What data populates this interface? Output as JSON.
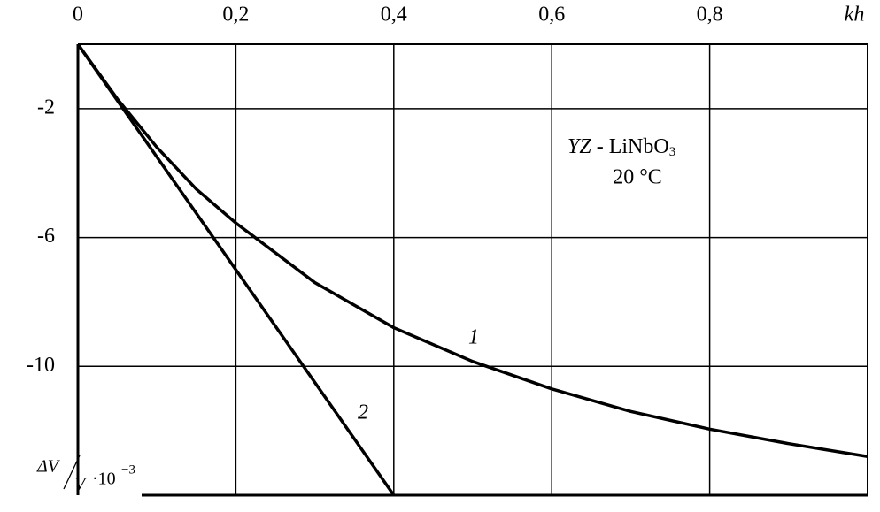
{
  "chart_data": {
    "type": "line",
    "x_label": "kh",
    "y_label": {
      "numerator": "ΔV",
      "denominator": "V",
      "scale": "·10",
      "exponent": "−3"
    },
    "annotation": {
      "italic": "YZ",
      "text": " - LiNbO",
      "sub": "3",
      "line2": "20 °C"
    },
    "xlim": [
      0,
      1
    ],
    "ylim": [
      -14,
      0
    ],
    "xticks": [
      0,
      {
        "value": 0.2,
        "label": "0,2"
      },
      {
        "value": 0.4,
        "label": "0,4"
      },
      {
        "value": 0.6,
        "label": "0,6"
      },
      {
        "value": 0.8,
        "label": "0,8"
      }
    ],
    "yticks": [
      -2,
      -6,
      -10
    ],
    "grid": true,
    "series": [
      {
        "name": "1",
        "color": "#000000",
        "x": [
          0,
          0.05,
          0.1,
          0.15,
          0.2,
          0.3,
          0.4,
          0.5,
          0.6,
          0.7,
          0.8,
          0.9,
          1.0
        ],
        "values": [
          0,
          -1.7,
          -3.2,
          -4.5,
          -5.55,
          -7.4,
          -8.8,
          -9.85,
          -10.7,
          -11.4,
          -11.95,
          -12.4,
          -12.8
        ]
      },
      {
        "name": "2",
        "color": "#000000",
        "x": [
          0,
          0.4
        ],
        "values": [
          0,
          -14
        ]
      }
    ]
  }
}
